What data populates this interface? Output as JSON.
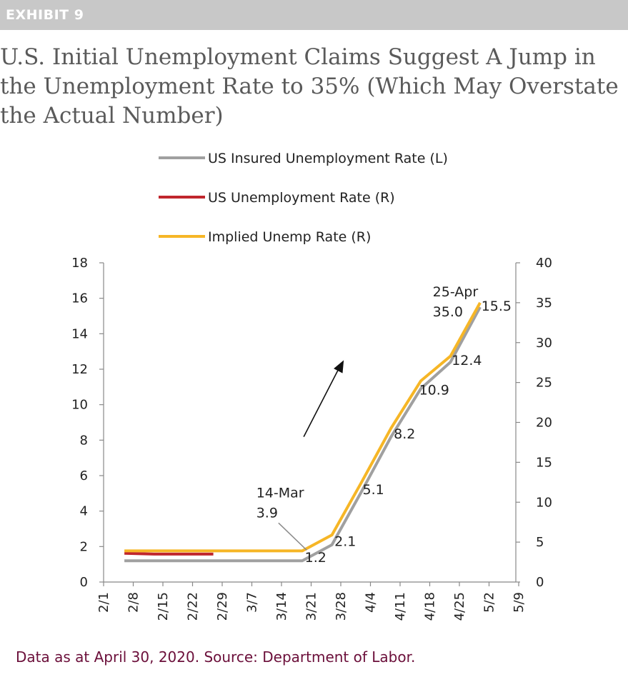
{
  "exhibit_label": "EXHIBIT 9",
  "title": "U.S. Initial Unemployment Claims Suggest A Jump in the Unemployment Rate to 35% (Which May Overstate the Actual Number)",
  "footer": "Data as at April 30, 2020. Source: Department of Labor.",
  "colors": {
    "insured": "#a0a0a0",
    "unemployment": "#c0262d",
    "implied": "#f6b626",
    "axis": "#888888",
    "exhibit_bar": "#c8c8c8",
    "footer": "#6b0f3a"
  },
  "chart_data": {
    "type": "line",
    "categories": [
      "2/1",
      "2/8",
      "2/15",
      "2/22",
      "2/29",
      "3/7",
      "3/14",
      "3/21",
      "3/28",
      "4/4",
      "4/11",
      "4/18",
      "4/25",
      "5/2",
      "5/9"
    ],
    "left_axis": {
      "ylim": [
        0,
        18
      ],
      "ticks": [
        0,
        2,
        4,
        6,
        8,
        10,
        12,
        14,
        16,
        18
      ]
    },
    "right_axis": {
      "ylim": [
        0,
        40
      ],
      "ticks": [
        0,
        5,
        10,
        15,
        20,
        25,
        30,
        35,
        40
      ]
    },
    "legend": [
      "US Insured Unemployment Rate (L)",
      "US Unemployment Rate (R)",
      "Implied Unemp Rate (R)"
    ],
    "series": [
      {
        "name": "US Insured Unemployment Rate (L)",
        "axis": "left",
        "color": "#a0a0a0",
        "x": [
          0.7,
          1.7,
          2.7,
          3.7,
          4.7,
          5.7,
          6.7,
          7.7,
          8.7,
          9.7,
          10.7,
          11.7,
          12.7
        ],
        "values": [
          1.2,
          1.2,
          1.2,
          1.2,
          1.2,
          1.2,
          1.2,
          2.1,
          5.1,
          8.2,
          10.9,
          12.4,
          15.5
        ]
      },
      {
        "name": "US Unemployment Rate (R)",
        "axis": "right",
        "color": "#c0262d",
        "x": [
          0.7,
          1.7,
          2.7,
          3.7
        ],
        "values": [
          3.6,
          3.5,
          3.5,
          3.5
        ]
      },
      {
        "name": "Implied Unemp Rate (R)",
        "axis": "right",
        "color": "#f6b626",
        "x": [
          0.7,
          1.7,
          2.7,
          3.7,
          4.7,
          5.7,
          6.7,
          7.0,
          7.7,
          8.7,
          9.7,
          10.7,
          11.7,
          12.7
        ],
        "values": [
          3.9,
          3.9,
          3.9,
          3.9,
          3.9,
          3.9,
          3.9,
          4.5,
          5.9,
          12.5,
          19.3,
          25.2,
          28.3,
          35.0
        ]
      }
    ],
    "data_labels": [
      {
        "text": "1.2",
        "x": 7.15,
        "yr": 2.5
      },
      {
        "text": "2.1",
        "x": 8.15,
        "yr": 4.5
      },
      {
        "text": "5.1",
        "x": 9.1,
        "yr": 11.0
      },
      {
        "text": "8.2",
        "x": 10.15,
        "yr": 18.0
      },
      {
        "text": "10.9",
        "x": 11.15,
        "yr": 23.5
      },
      {
        "text": "12.4",
        "x": 12.25,
        "yr": 27.2
      },
      {
        "text": "15.5",
        "x": 13.25,
        "yr": 34.0
      }
    ],
    "annotations": [
      {
        "line1": "14-Mar",
        "line2": "3.9",
        "x": 5.15,
        "yr": 10.6
      },
      {
        "line1": "25-Apr",
        "line2": "35.0",
        "x": 11.1,
        "yr": 35.8
      }
    ]
  }
}
